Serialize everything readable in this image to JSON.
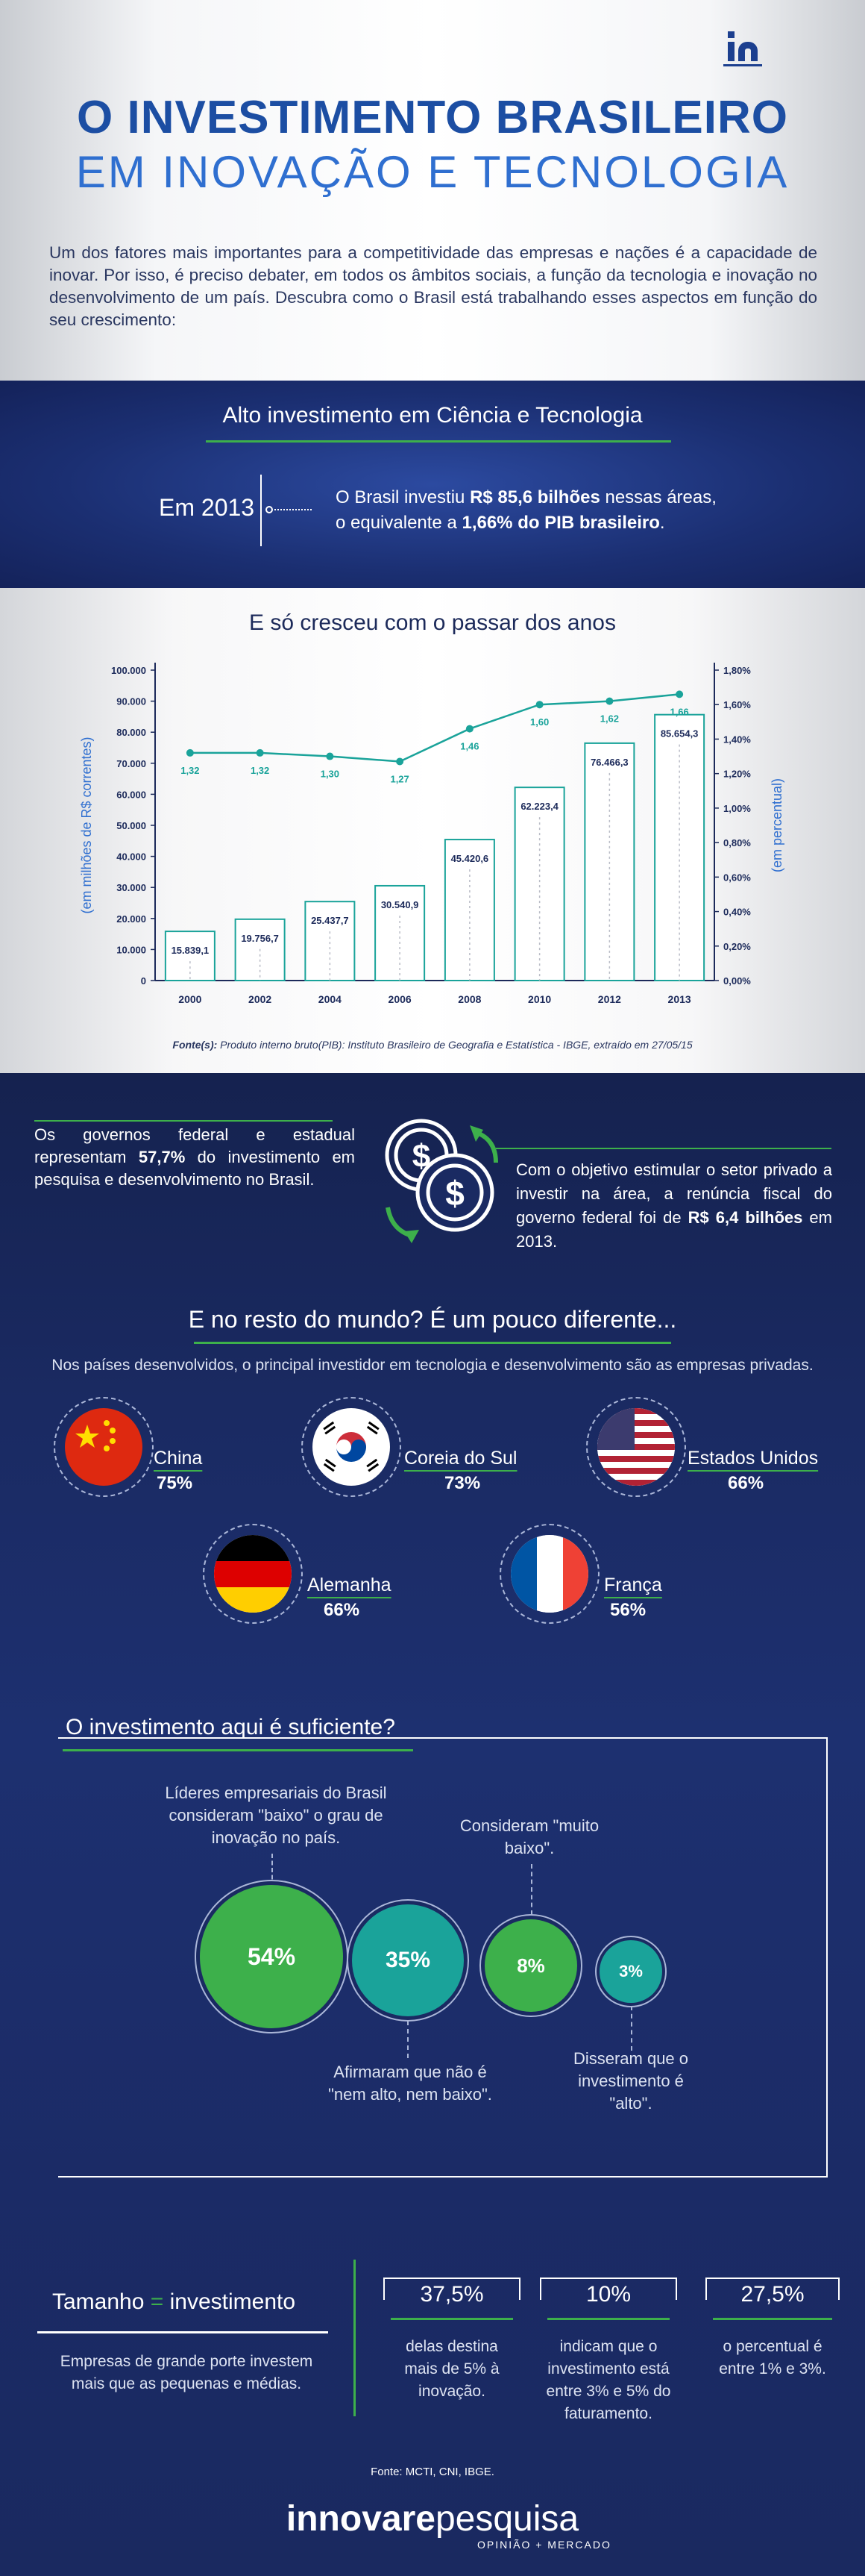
{
  "header": {
    "title_line1": "O INVESTIMENTO BRASILEIRO",
    "title_line2": "EM INOVAÇÃO E TECNOLOGIA",
    "intro": "Um dos fatores mais importantes para a competitividade das empresas e nações é a capacidade de inovar. Por isso, é preciso debater, em todos os âmbitos sociais, a função da tecnologia e inovação no desenvolvimento de um país. Descubra como o Brasil está trabalhando esses aspectos em função do seu crescimento:",
    "logo": "in"
  },
  "alto": {
    "title": "Alto investimento em Ciência e Tecnologia",
    "year_label": "Em 2013",
    "text_a": "O Brasil investiu ",
    "text_b": "R$ 85,6 bilhões",
    "text_c": " nessas áreas,",
    "text_d": "o equivalente a ",
    "text_e": "1,66% do PIB brasileiro",
    "text_f": "."
  },
  "chart_data": {
    "type": "bar",
    "title": "E só cresceu com o passar dos anos",
    "categories": [
      "2000",
      "2002",
      "2004",
      "2006",
      "2008",
      "2010",
      "2012",
      "2013"
    ],
    "bar_values": [
      15839.1,
      19756.7,
      25437.7,
      30540.9,
      45420.6,
      62223.4,
      76466.3,
      85654.3
    ],
    "bar_labels": [
      "15.839,1",
      "19.756,7",
      "25.437,7",
      "30.540,9",
      "45.420,6",
      "62.223,4",
      "76.466,3",
      "85.654,3"
    ],
    "line_values": [
      1.32,
      1.32,
      1.3,
      1.27,
      1.46,
      1.6,
      1.62,
      1.66
    ],
    "line_labels": [
      "1,32",
      "1,32",
      "1,30",
      "1,27",
      "1,46",
      "1,60",
      "1,62",
      "1,66"
    ],
    "ylabel_left": "(em milhões de R$ correntes)",
    "ylabel_right": "(em percentual)",
    "yticks_left": [
      "0",
      "10.000",
      "20.000",
      "30.000",
      "40.000",
      "50.000",
      "60.000",
      "70.000",
      "80.000",
      "90.000",
      "100.000"
    ],
    "yticks_right": [
      "0,00%",
      "0,20%",
      "0,40%",
      "0,60%",
      "0,80%",
      "1,00%",
      "1,20%",
      "1,40%",
      "1,60%",
      "1,80%"
    ],
    "ylim_left": [
      0,
      100000
    ],
    "ylim_right": [
      0,
      1.8
    ],
    "source_bold": "Fonte(s):",
    "source": " Produto interno bruto(PIB): Instituto Brasileiro de Geografia e Estatística - IBGE, extraído em 27/05/15"
  },
  "gov": {
    "left_a": "Os governos federal e estadual representam ",
    "left_b": "57,7%",
    "left_c": " do investimento em pesquisa e desenvolvimento no Brasil.",
    "right_a": "Com o objetivo estimular o setor privado a investir na área, a renúncia fiscal do governo federal foi de ",
    "right_b": "R$ 6,4 bilhões",
    "right_c": " em 2013."
  },
  "world": {
    "title": "E no resto do mundo? É um pouco diferente...",
    "subtitle": "Nos países desenvolvidos, o principal investidor em tecnologia e desenvolvimento são as empresas privadas.",
    "countries": [
      {
        "name": "China",
        "value": "75%"
      },
      {
        "name": "Coreia do Sul",
        "value": "73%"
      },
      {
        "name": "Estados Unidos",
        "value": "66%"
      },
      {
        "name": "Alemanha",
        "value": "66%"
      },
      {
        "name": "França",
        "value": "56%"
      }
    ]
  },
  "suficiente": {
    "title": "O investimento aqui é suficiente?",
    "bubbles": [
      {
        "value": "54%",
        "color": "#3db04b",
        "text": "Líderes empresariais do Brasil consideram \"baixo\" o grau de inovação no país."
      },
      {
        "value": "35%",
        "color": "#1aa39a",
        "text": "Afirmaram que não é \"nem alto, nem baixo\"."
      },
      {
        "value": "8%",
        "color": "#3db04b",
        "text": "Consideram \"muito baixo\"."
      },
      {
        "value": "3%",
        "color": "#1aa39a",
        "text": "Disseram que o investimento é \"alto\"."
      }
    ]
  },
  "tamanho": {
    "title_a": "Tamanho ",
    "title_eq": "=",
    "title_b": " investimento",
    "text": "Empresas de grande porte investem mais que as pequenas e médias.",
    "stats": [
      {
        "value": "37,5%",
        "text": "delas destina mais de 5% à inovação."
      },
      {
        "value": "10%",
        "text": "indicam que o investimento está entre 3% e 5% do faturamento."
      },
      {
        "value": "27,5%",
        "text": "o percentual é entre 1% e 3%."
      }
    ]
  },
  "footer": {
    "source": "Fonte: MCTI, CNI, IBGE.",
    "brand_a": "innovare",
    "brand_b": "pesquisa",
    "brand_sub": "OPINIÃO + MERCADO"
  },
  "colors": {
    "green": "#3db04b",
    "teal": "#1aa39a",
    "navy": "#1c3f8f"
  }
}
